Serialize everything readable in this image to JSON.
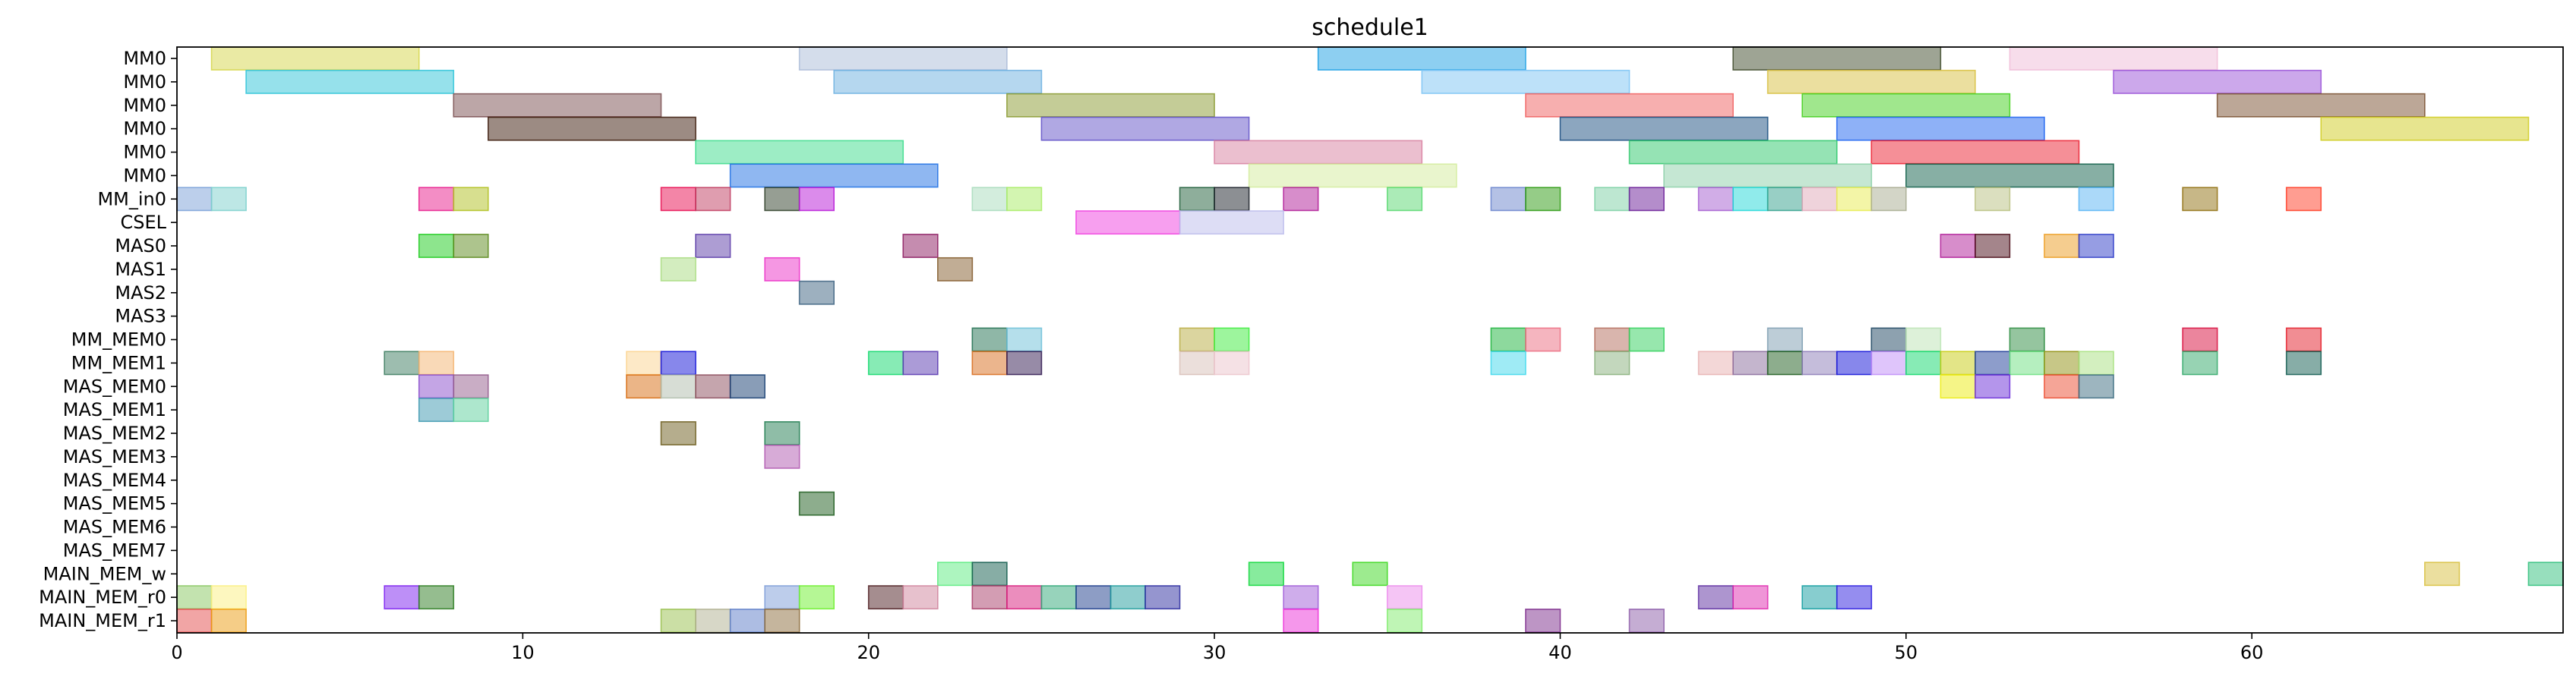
{
  "chart_data": {
    "type": "gantt",
    "title": "schedule1",
    "xlabel": "",
    "ylabel": "",
    "xlim": [
      0,
      69
    ],
    "xticks": [
      0,
      10,
      20,
      30,
      40,
      50,
      60
    ],
    "grid": false,
    "rows": [
      "MM0",
      "MM0",
      "MM0",
      "MM0",
      "MM0",
      "MM0",
      "MM_in0",
      "CSEL",
      "MAS0",
      "MAS1",
      "MAS2",
      "MAS3",
      "MM_MEM0",
      "MM_MEM1",
      "MAS_MEM0",
      "MAS_MEM1",
      "MAS_MEM2",
      "MAS_MEM3",
      "MAS_MEM4",
      "MAS_MEM5",
      "MAS_MEM6",
      "MAS_MEM7",
      "MAIN_MEM_w",
      "MAIN_MEM_r0",
      "MAIN_MEM_r1"
    ],
    "tasks": [
      {
        "row": 0,
        "start": 1,
        "end": 7,
        "color": "#d6d64a"
      },
      {
        "row": 0,
        "start": 18,
        "end": 24,
        "color": "#aabbd8"
      },
      {
        "row": 0,
        "start": 33,
        "end": 39,
        "color": "#1ca0e4"
      },
      {
        "row": 0,
        "start": 45,
        "end": 51,
        "color": "#3e4a2a"
      },
      {
        "row": 0,
        "start": 53,
        "end": 59,
        "color": "#f0bcd8"
      },
      {
        "row": 1,
        "start": 2,
        "end": 8,
        "color": "#2ec4d8"
      },
      {
        "row": 1,
        "start": 19,
        "end": 25,
        "color": "#6cb0e0"
      },
      {
        "row": 1,
        "start": 36,
        "end": 42,
        "color": "#7cc4f4"
      },
      {
        "row": 1,
        "start": 46,
        "end": 52,
        "color": "#d8c040"
      },
      {
        "row": 1,
        "start": 56,
        "end": 62,
        "color": "#9a52d8"
      },
      {
        "row": 2,
        "start": 8,
        "end": 14,
        "color": "#7a4e50"
      },
      {
        "row": 2,
        "start": 24,
        "end": 30,
        "color": "#8a9a30"
      },
      {
        "row": 2,
        "start": 39,
        "end": 45,
        "color": "#f06060"
      },
      {
        "row": 2,
        "start": 47,
        "end": 53,
        "color": "#42d01c"
      },
      {
        "row": 2,
        "start": 59,
        "end": 65,
        "color": "#7a5030"
      },
      {
        "row": 3,
        "start": 9,
        "end": 15,
        "color": "#3a1808"
      },
      {
        "row": 3,
        "start": 25,
        "end": 31,
        "color": "#6252c8"
      },
      {
        "row": 3,
        "start": 40,
        "end": 46,
        "color": "#1a4e80"
      },
      {
        "row": 3,
        "start": 48,
        "end": 54,
        "color": "#1e64f0"
      },
      {
        "row": 3,
        "start": 62,
        "end": 68,
        "color": "#d0cc20"
      },
      {
        "row": 4,
        "start": 15,
        "end": 21,
        "color": "#3cdc8c"
      },
      {
        "row": 4,
        "start": 30,
        "end": 36,
        "color": "#d880a0"
      },
      {
        "row": 4,
        "start": 42,
        "end": 48,
        "color": "#2cc86a"
      },
      {
        "row": 4,
        "start": 49,
        "end": 55,
        "color": "#ec2030"
      },
      {
        "row": 5,
        "start": 16,
        "end": 22,
        "color": "#2070e4"
      },
      {
        "row": 5,
        "start": 31,
        "end": 37,
        "color": "#d4ec9c"
      },
      {
        "row": 5,
        "start": 43,
        "end": 49,
        "color": "#8cd0a8"
      },
      {
        "row": 5,
        "start": 50,
        "end": 56,
        "color": "#10604a"
      },
      {
        "row": 6,
        "start": 0,
        "end": 1,
        "color": "#7aa0d8"
      },
      {
        "row": 6,
        "start": 1,
        "end": 2,
        "color": "#7cd0cc"
      },
      {
        "row": 6,
        "start": 7,
        "end": 8,
        "color": "#e81c8c"
      },
      {
        "row": 6,
        "start": 8,
        "end": 9,
        "color": "#b0c020"
      },
      {
        "row": 6,
        "start": 14,
        "end": 15,
        "color": "#e80c50"
      },
      {
        "row": 6,
        "start": 15,
        "end": 16,
        "color": "#c03c60"
      },
      {
        "row": 6,
        "start": 17,
        "end": 18,
        "color": "#2e3e28"
      },
      {
        "row": 6,
        "start": 18,
        "end": 19,
        "color": "#b818d8"
      },
      {
        "row": 6,
        "start": 23,
        "end": 24,
        "color": "#a8dcbc"
      },
      {
        "row": 6,
        "start": 24,
        "end": 25,
        "color": "#a8ec64"
      },
      {
        "row": 6,
        "start": 29,
        "end": 30,
        "color": "#1e5e38"
      },
      {
        "row": 6,
        "start": 30,
        "end": 31,
        "color": "#1a2028"
      },
      {
        "row": 6,
        "start": 32,
        "end": 33,
        "color": "#b01c98"
      },
      {
        "row": 6,
        "start": 35,
        "end": 36,
        "color": "#58d870"
      },
      {
        "row": 6,
        "start": 38,
        "end": 39,
        "color": "#6a84cc"
      },
      {
        "row": 6,
        "start": 39,
        "end": 40,
        "color": "#2c9a10"
      },
      {
        "row": 6,
        "start": 41,
        "end": 42,
        "color": "#7cd0a4"
      },
      {
        "row": 6,
        "start": 42,
        "end": 43,
        "color": "#6a1c98"
      },
      {
        "row": 6,
        "start": 44,
        "end": 45,
        "color": "#a45cd0"
      },
      {
        "row": 6,
        "start": 45,
        "end": 46,
        "color": "#22d8d8"
      },
      {
        "row": 6,
        "start": 46,
        "end": 47,
        "color": "#32a08c"
      },
      {
        "row": 6,
        "start": 47,
        "end": 48,
        "color": "#e0a8b8"
      },
      {
        "row": 6,
        "start": 48,
        "end": 49,
        "color": "#e8ec50"
      },
      {
        "row": 6,
        "start": 49,
        "end": 50,
        "color": "#a8ac90"
      },
      {
        "row": 6,
        "start": 52,
        "end": 53,
        "color": "#b8c080"
      },
      {
        "row": 6,
        "start": 55,
        "end": 56,
        "color": "#58b4f4"
      },
      {
        "row": 6,
        "start": 58,
        "end": 59,
        "color": "#907010"
      },
      {
        "row": 6,
        "start": 61,
        "end": 62,
        "color": "#ff3c24"
      },
      {
        "row": 7,
        "start": 26,
        "end": 29,
        "color": "#f040e0"
      },
      {
        "row": 7,
        "start": 29,
        "end": 32,
        "color": "#bcbcec"
      },
      {
        "row": 8,
        "start": 7,
        "end": 8,
        "color": "#1ccc1c"
      },
      {
        "row": 8,
        "start": 8,
        "end": 9,
        "color": "#5c8a1c"
      },
      {
        "row": 8,
        "start": 15,
        "end": 16,
        "color": "#5c3ca8"
      },
      {
        "row": 8,
        "start": 21,
        "end": 22,
        "color": "#8c1a60"
      },
      {
        "row": 8,
        "start": 51,
        "end": 52,
        "color": "#b01c98"
      },
      {
        "row": 8,
        "start": 52,
        "end": 53,
        "color": "#4a0c18"
      },
      {
        "row": 8,
        "start": 54,
        "end": 55,
        "color": "#ec9c20"
      },
      {
        "row": 8,
        "start": 55,
        "end": 56,
        "color": "#2e3cc8"
      },
      {
        "row": 9,
        "start": 14,
        "end": 15,
        "color": "#a8dc80"
      },
      {
        "row": 9,
        "start": 17,
        "end": 18,
        "color": "#ec30c8"
      },
      {
        "row": 9,
        "start": 22,
        "end": 23,
        "color": "#845c2c"
      },
      {
        "row": 10,
        "start": 18,
        "end": 19,
        "color": "#3c6280"
      },
      {
        "row": 12,
        "start": 23,
        "end": 24,
        "color": "#207050"
      },
      {
        "row": 12,
        "start": 24,
        "end": 25,
        "color": "#6cc0d8"
      },
      {
        "row": 12,
        "start": 29,
        "end": 30,
        "color": "#b8ac40"
      },
      {
        "row": 12,
        "start": 30,
        "end": 31,
        "color": "#3cec3c"
      },
      {
        "row": 12,
        "start": 38,
        "end": 39,
        "color": "#1cb43c"
      },
      {
        "row": 12,
        "start": 39,
        "end": 40,
        "color": "#ec6c80"
      },
      {
        "row": 12,
        "start": 41,
        "end": 42,
        "color": "#b46c5c"
      },
      {
        "row": 12,
        "start": 42,
        "end": 43,
        "color": "#30d05c"
      },
      {
        "row": 12,
        "start": 46,
        "end": 47,
        "color": "#7c9cb0"
      },
      {
        "row": 12,
        "start": 49,
        "end": 50,
        "color": "#1c4460"
      },
      {
        "row": 12,
        "start": 50,
        "end": 51,
        "color": "#bce4b4"
      },
      {
        "row": 12,
        "start": 53,
        "end": 54,
        "color": "#2c8c40"
      },
      {
        "row": 12,
        "start": 58,
        "end": 59,
        "color": "#d80c3c"
      },
      {
        "row": 12,
        "start": 61,
        "end": 62,
        "color": "#e41c28"
      },
      {
        "row": 13,
        "start": 6,
        "end": 7,
        "color": "#3c7c60"
      },
      {
        "row": 13,
        "start": 7,
        "end": 8,
        "color": "#f4b470"
      },
      {
        "row": 13,
        "start": 13,
        "end": 14,
        "color": "#fcd490"
      },
      {
        "row": 13,
        "start": 14,
        "end": 15,
        "color": "#1010d8"
      },
      {
        "row": 13,
        "start": 20,
        "end": 21,
        "color": "#10d86c"
      },
      {
        "row": 13,
        "start": 21,
        "end": 22,
        "color": "#5838b0"
      },
      {
        "row": 13,
        "start": 23,
        "end": 24,
        "color": "#d86c1c"
      },
      {
        "row": 13,
        "start": 24,
        "end": 25,
        "color": "#301850"
      },
      {
        "row": 13,
        "start": 29,
        "end": 30,
        "color": "#d8c0b8"
      },
      {
        "row": 13,
        "start": 30,
        "end": 31,
        "color": "#ecc4cc"
      },
      {
        "row": 13,
        "start": 38,
        "end": 39,
        "color": "#40d8ec"
      },
      {
        "row": 13,
        "start": 41,
        "end": 42,
        "color": "#88b07c"
      },
      {
        "row": 13,
        "start": 44,
        "end": 45,
        "color": "#e8b0b0"
      },
      {
        "row": 13,
        "start": 45,
        "end": 46,
        "color": "#8a6c9c"
      },
      {
        "row": 13,
        "start": 46,
        "end": 47,
        "color": "#1c5c1c"
      },
      {
        "row": 13,
        "start": 47,
        "end": 48,
        "color": "#8c7cb8"
      },
      {
        "row": 13,
        "start": 48,
        "end": 49,
        "color": "#1010d8"
      },
      {
        "row": 13,
        "start": 49,
        "end": 50,
        "color": "#c08cf8"
      },
      {
        "row": 13,
        "start": 50,
        "end": 51,
        "color": "#10d86c"
      },
      {
        "row": 13,
        "start": 51,
        "end": 52,
        "color": "#c8cc10"
      },
      {
        "row": 13,
        "start": 52,
        "end": 53,
        "color": "#1c3c98"
      },
      {
        "row": 13,
        "start": 53,
        "end": 54,
        "color": "#6ce080"
      },
      {
        "row": 13,
        "start": 54,
        "end": 55,
        "color": "#909010"
      },
      {
        "row": 13,
        "start": 55,
        "end": 56,
        "color": "#a8e080"
      },
      {
        "row": 13,
        "start": 58,
        "end": 59,
        "color": "#30a868"
      },
      {
        "row": 13,
        "start": 61,
        "end": 62,
        "color": "#105c50"
      },
      {
        "row": 14,
        "start": 7,
        "end": 8,
        "color": "#8a4ccc"
      },
      {
        "row": 14,
        "start": 8,
        "end": 9,
        "color": "#945c8c"
      },
      {
        "row": 14,
        "start": 13,
        "end": 14,
        "color": "#d86c10"
      },
      {
        "row": 14,
        "start": 14,
        "end": 15,
        "color": "#b0bcac"
      },
      {
        "row": 14,
        "start": 15,
        "end": 16,
        "color": "#8c4c5c"
      },
      {
        "row": 14,
        "start": 16,
        "end": 17,
        "color": "#143c70"
      },
      {
        "row": 14,
        "start": 51,
        "end": 52,
        "color": "#ecec10"
      },
      {
        "row": 14,
        "start": 52,
        "end": 53,
        "color": "#6a2cd8"
      },
      {
        "row": 14,
        "start": 54,
        "end": 55,
        "color": "#ec4c30"
      },
      {
        "row": 14,
        "start": 55,
        "end": 56,
        "color": "#3c6c80"
      },
      {
        "row": 15,
        "start": 7,
        "end": 8,
        "color": "#3c98b0"
      },
      {
        "row": 15,
        "start": 8,
        "end": 9,
        "color": "#5cd09c"
      },
      {
        "row": 16,
        "start": 14,
        "end": 15,
        "color": "#6c5c1c"
      },
      {
        "row": 16,
        "start": 17,
        "end": 18,
        "color": "#207c50"
      },
      {
        "row": 17,
        "start": 17,
        "end": 18,
        "color": "#b058b0"
      },
      {
        "row": 19,
        "start": 18,
        "end": 19,
        "color": "#1c5c1c"
      },
      {
        "row": 22,
        "start": 22,
        "end": 23,
        "color": "#5cec80"
      },
      {
        "row": 22,
        "start": 23,
        "end": 24,
        "color": "#105c4c"
      },
      {
        "row": 22,
        "start": 31,
        "end": 32,
        "color": "#10d83c"
      },
      {
        "row": 22,
        "start": 34,
        "end": 35,
        "color": "#3cd820"
      },
      {
        "row": 22,
        "start": 65,
        "end": 66,
        "color": "#d8c040"
      },
      {
        "row": 22,
        "start": 68,
        "end": 69,
        "color": "#30c07c"
      },
      {
        "row": 23,
        "start": 0,
        "end": 1,
        "color": "#88c860"
      },
      {
        "row": 23,
        "start": 1,
        "end": 2,
        "color": "#fcf080"
      },
      {
        "row": 23,
        "start": 6,
        "end": 7,
        "color": "#7c20f0"
      },
      {
        "row": 23,
        "start": 7,
        "end": 8,
        "color": "#2c7c20"
      },
      {
        "row": 23,
        "start": 17,
        "end": 18,
        "color": "#7c9cd8"
      },
      {
        "row": 23,
        "start": 18,
        "end": 19,
        "color": "#6cf02c"
      },
      {
        "row": 23,
        "start": 20,
        "end": 21,
        "color": "#4c1c20"
      },
      {
        "row": 23,
        "start": 21,
        "end": 22,
        "color": "#d0849c"
      },
      {
        "row": 23,
        "start": 23,
        "end": 24,
        "color": "#a83c68"
      },
      {
        "row": 23,
        "start": 24,
        "end": 25,
        "color": "#d81c7c"
      },
      {
        "row": 23,
        "start": 25,
        "end": 26,
        "color": "#30a878"
      },
      {
        "row": 23,
        "start": 26,
        "end": 27,
        "color": "#1c3c8c"
      },
      {
        "row": 23,
        "start": 27,
        "end": 28,
        "color": "#209c9c"
      },
      {
        "row": 23,
        "start": 28,
        "end": 29,
        "color": "#2c2ca0"
      },
      {
        "row": 23,
        "start": 32,
        "end": 33,
        "color": "#a05cd8"
      },
      {
        "row": 23,
        "start": 35,
        "end": 36,
        "color": "#ec8cec"
      },
      {
        "row": 23,
        "start": 44,
        "end": 45,
        "color": "#5c2ca0"
      },
      {
        "row": 23,
        "start": 45,
        "end": 46,
        "color": "#e02cb0"
      },
      {
        "row": 23,
        "start": 47,
        "end": 48,
        "color": "#109ca0"
      },
      {
        "row": 23,
        "start": 48,
        "end": 49,
        "color": "#2c1ce0"
      },
      {
        "row": 24,
        "start": 0,
        "end": 1,
        "color": "#e44c4c"
      },
      {
        "row": 24,
        "start": 1,
        "end": 2,
        "color": "#ec9c10"
      },
      {
        "row": 24,
        "start": 14,
        "end": 15,
        "color": "#98c04c"
      },
      {
        "row": 24,
        "start": 15,
        "end": 16,
        "color": "#b0b090"
      },
      {
        "row": 24,
        "start": 16,
        "end": 17,
        "color": "#5c7cc8"
      },
      {
        "row": 24,
        "start": 17,
        "end": 18,
        "color": "#8c6c3c"
      },
      {
        "row": 24,
        "start": 32,
        "end": 33,
        "color": "#ec30d8"
      },
      {
        "row": 24,
        "start": 35,
        "end": 36,
        "color": "#80ec6c"
      },
      {
        "row": 24,
        "start": 39,
        "end": 40,
        "color": "#7c2c8c"
      },
      {
        "row": 24,
        "start": 42,
        "end": 43,
        "color": "#8c5ca8"
      }
    ]
  }
}
